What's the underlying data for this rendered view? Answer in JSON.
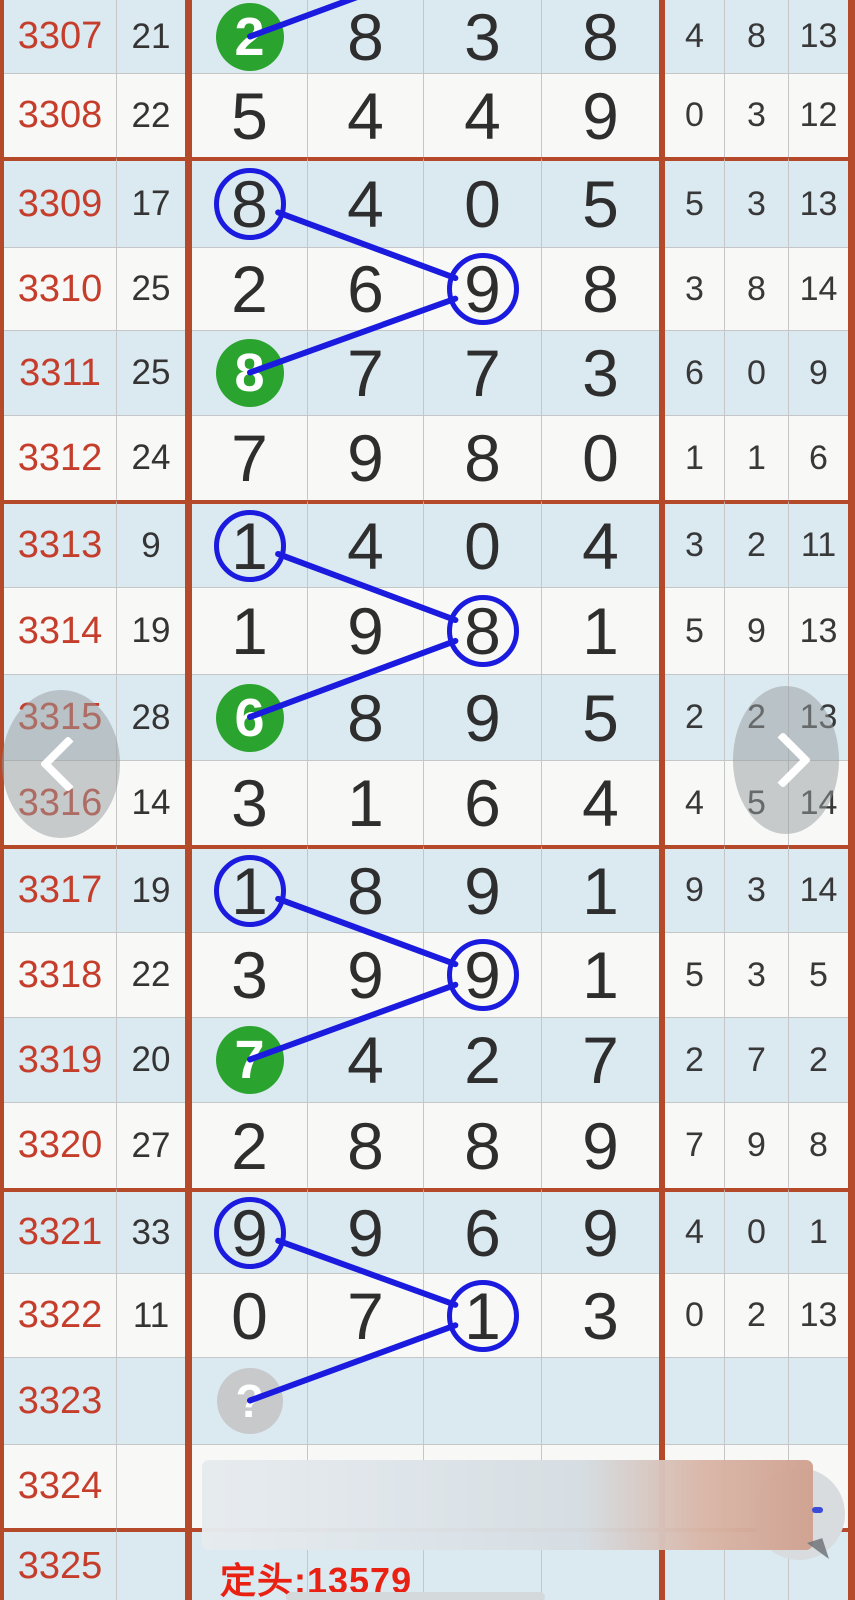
{
  "footer": {
    "text": "定头:13579"
  },
  "nav": {
    "left_label": "previous",
    "right_label": "next"
  },
  "colors": {
    "group_border": "#b54a2b",
    "issue_text": "#c53e2c",
    "footer_text": "#e92112",
    "green_mark": "#2aa42e",
    "blue_mark": "#1b1be0",
    "row_blue": "#dbe9f1",
    "row_white": "#f8f8f7"
  },
  "table": {
    "rows": [
      {
        "issue": "3307",
        "sum": "21",
        "big": [
          "2",
          "8",
          "3",
          "8"
        ],
        "small": [
          "4",
          "8",
          "13"
        ],
        "marks": {
          "0": "green"
        }
      },
      {
        "issue": "3308",
        "sum": "22",
        "big": [
          "5",
          "4",
          "4",
          "9"
        ],
        "small": [
          "0",
          "3",
          "12"
        ],
        "marks": {}
      },
      {
        "issue": "3309",
        "sum": "17",
        "big": [
          "8",
          "4",
          "0",
          "5"
        ],
        "small": [
          "5",
          "3",
          "13"
        ],
        "marks": {
          "0": "circle"
        }
      },
      {
        "issue": "3310",
        "sum": "25",
        "big": [
          "2",
          "6",
          "9",
          "8"
        ],
        "small": [
          "3",
          "8",
          "14"
        ],
        "marks": {
          "2": "circle"
        }
      },
      {
        "issue": "3311",
        "sum": "25",
        "big": [
          "8",
          "7",
          "7",
          "3"
        ],
        "small": [
          "6",
          "0",
          "9"
        ],
        "marks": {
          "0": "green"
        }
      },
      {
        "issue": "3312",
        "sum": "24",
        "big": [
          "7",
          "9",
          "8",
          "0"
        ],
        "small": [
          "1",
          "1",
          "6"
        ],
        "marks": {}
      },
      {
        "issue": "3313",
        "sum": "9",
        "big": [
          "1",
          "4",
          "0",
          "4"
        ],
        "small": [
          "3",
          "2",
          "11"
        ],
        "marks": {
          "0": "circle"
        }
      },
      {
        "issue": "3314",
        "sum": "19",
        "big": [
          "1",
          "9",
          "8",
          "1"
        ],
        "small": [
          "5",
          "9",
          "13"
        ],
        "marks": {
          "2": "circle"
        }
      },
      {
        "issue": "3315",
        "sum": "28",
        "big": [
          "6",
          "8",
          "9",
          "5"
        ],
        "small": [
          "2",
          "2",
          "13"
        ],
        "marks": {
          "0": "green"
        }
      },
      {
        "issue": "3316",
        "sum": "14",
        "big": [
          "3",
          "1",
          "6",
          "4"
        ],
        "small": [
          "4",
          "5",
          "14"
        ],
        "marks": {}
      },
      {
        "issue": "3317",
        "sum": "19",
        "big": [
          "1",
          "8",
          "9",
          "1"
        ],
        "small": [
          "9",
          "3",
          "14"
        ],
        "marks": {
          "0": "circle"
        }
      },
      {
        "issue": "3318",
        "sum": "22",
        "big": [
          "3",
          "9",
          "9",
          "1"
        ],
        "small": [
          "5",
          "3",
          "5"
        ],
        "marks": {
          "2": "circle"
        }
      },
      {
        "issue": "3319",
        "sum": "20",
        "big": [
          "7",
          "4",
          "2",
          "7"
        ],
        "small": [
          "2",
          "7",
          "2"
        ],
        "marks": {
          "0": "green"
        }
      },
      {
        "issue": "3320",
        "sum": "27",
        "big": [
          "2",
          "8",
          "8",
          "9"
        ],
        "small": [
          "7",
          "9",
          "8"
        ],
        "marks": {}
      },
      {
        "issue": "3321",
        "sum": "33",
        "big": [
          "9",
          "9",
          "6",
          "9"
        ],
        "small": [
          "4",
          "0",
          "1"
        ],
        "marks": {
          "0": "circle"
        }
      },
      {
        "issue": "3322",
        "sum": "11",
        "big": [
          "0",
          "7",
          "1",
          "3"
        ],
        "small": [
          "0",
          "2",
          "13"
        ],
        "marks": {
          "2": "circle"
        }
      },
      {
        "issue": "3323",
        "sum": "",
        "big": [
          "?",
          "",
          "",
          ""
        ],
        "small": [
          "",
          "",
          ""
        ],
        "marks": {
          "0": "question"
        }
      },
      {
        "issue": "3324",
        "sum": "",
        "big": [
          "",
          "",
          "",
          ""
        ],
        "small": [
          "",
          "",
          ""
        ],
        "marks": {}
      },
      {
        "issue": "3325",
        "sum": "",
        "big": [
          "",
          "",
          "",
          ""
        ],
        "small": [
          "",
          "",
          ""
        ],
        "marks": {}
      }
    ]
  },
  "lines": [
    {
      "from": [
        "3307",
        0
      ],
      "to": "offscreen-up-right"
    },
    {
      "from": [
        "3309",
        0
      ],
      "to": [
        "3310",
        2
      ]
    },
    {
      "from": [
        "3310",
        2
      ],
      "to": [
        "3311",
        0
      ]
    },
    {
      "from": [
        "3313",
        0
      ],
      "to": [
        "3314",
        2
      ]
    },
    {
      "from": [
        "3314",
        2
      ],
      "to": [
        "3315",
        0
      ]
    },
    {
      "from": [
        "3317",
        0
      ],
      "to": [
        "3318",
        2
      ]
    },
    {
      "from": [
        "3318",
        2
      ],
      "to": [
        "3319",
        0
      ]
    },
    {
      "from": [
        "3321",
        0
      ],
      "to": [
        "3322",
        2
      ]
    },
    {
      "from": [
        "3322",
        2
      ],
      "to": [
        "3323",
        0
      ]
    }
  ]
}
